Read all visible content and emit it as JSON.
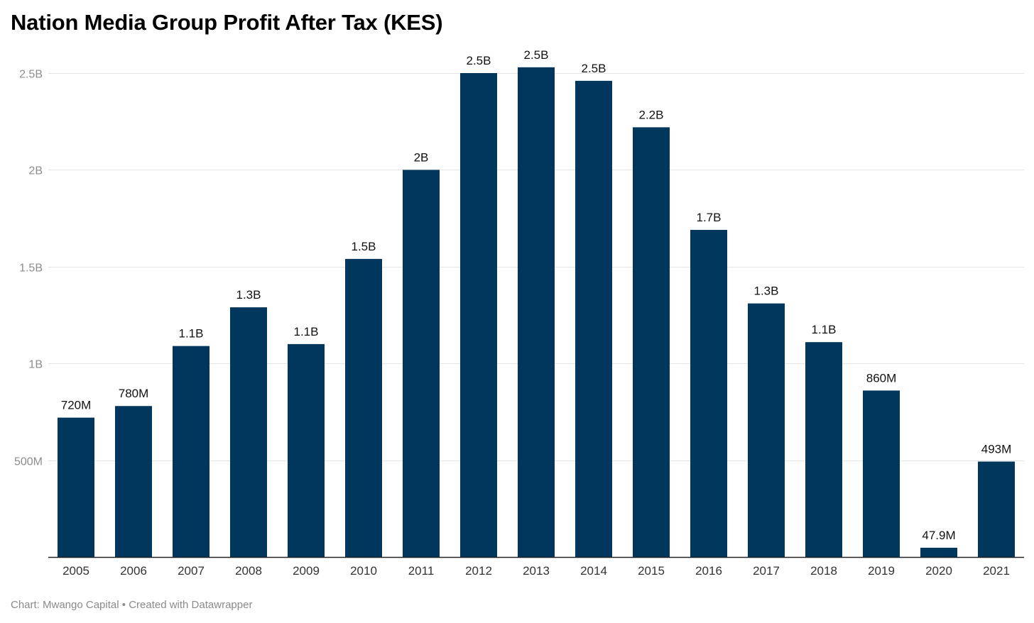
{
  "title": "Nation Media Group Profit After Tax (KES)",
  "footer": {
    "source": "Chart: Mwango Capital",
    "separator": "•",
    "credit": "Created with Datawrapper"
  },
  "colors": {
    "bar": "#01375c",
    "grid": "#e4e4e4",
    "axis": "#222222"
  },
  "chart_data": {
    "type": "bar",
    "title": "Nation Media Group Profit After Tax (KES)",
    "categories": [
      "2005",
      "2006",
      "2007",
      "2008",
      "2009",
      "2010",
      "2011",
      "2012",
      "2013",
      "2014",
      "2015",
      "2016",
      "2017",
      "2018",
      "2019",
      "2020",
      "2021"
    ],
    "values": [
      720000000,
      780000000,
      1090000000,
      1290000000,
      1100000000,
      1540000000,
      2000000000,
      2500000000,
      2530000000,
      2460000000,
      2220000000,
      1690000000,
      1310000000,
      1110000000,
      860000000,
      47900000,
      493000000
    ],
    "value_labels": [
      "720M",
      "780M",
      "1.1B",
      "1.3B",
      "1.1B",
      "1.5B",
      "2B",
      "2.5B",
      "2.5B",
      "2.5B",
      "2.2B",
      "1.7B",
      "1.3B",
      "1.1B",
      "860M",
      "47.9M",
      "493M"
    ],
    "yticks": [
      500000000,
      1000000000,
      1500000000,
      2000000000,
      2500000000
    ],
    "ytick_labels": [
      "500M",
      "1B",
      "1.5B",
      "2B",
      "2.5B"
    ],
    "ylim": [
      0,
      2500000000
    ],
    "xlabel": "",
    "ylabel": "",
    "grid": true
  }
}
